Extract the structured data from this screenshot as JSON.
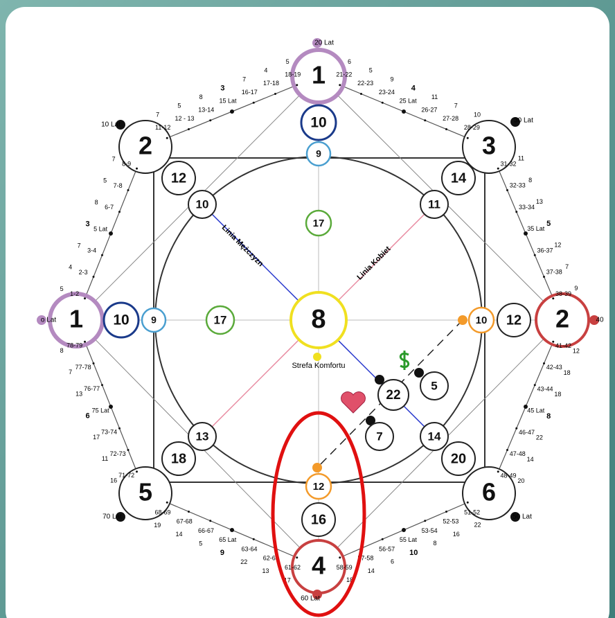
{
  "nodes": [
    {
      "label": "1"
    },
    {
      "label": "10"
    },
    {
      "label": "9"
    },
    {
      "label": "17"
    },
    {
      "label": "8"
    },
    {
      "label": "2"
    },
    {
      "label": "12"
    },
    {
      "label": "10"
    },
    {
      "label": "3"
    },
    {
      "label": "14"
    },
    {
      "label": "11"
    },
    {
      "label": "1"
    },
    {
      "label": "10"
    },
    {
      "label": "9"
    },
    {
      "label": "17"
    },
    {
      "label": "2"
    },
    {
      "label": "12"
    },
    {
      "label": "10"
    },
    {
      "label": "5"
    },
    {
      "label": "18"
    },
    {
      "label": "13"
    },
    {
      "label": "6"
    },
    {
      "label": "20"
    },
    {
      "label": "14"
    },
    {
      "label": "4"
    },
    {
      "label": "16"
    },
    {
      "label": "12"
    },
    {
      "label": "22"
    },
    {
      "label": "5"
    },
    {
      "label": "7"
    }
  ],
  "line_labels": {
    "men": "Linia Mężczyzn",
    "women": "Linia Kobiet",
    "comfort": "Strefa Komfortu"
  },
  "ages": [
    "o Lat",
    "10 Lat",
    "20 Lat",
    "30 Lat",
    "40",
    "50 Lat",
    "60 Lat",
    "70 Lat"
  ],
  "edges": [
    {
      "ranges": [
        "1-2",
        "2-3",
        "3-4",
        "5 Lat",
        "6-7",
        "7-8",
        "8-9"
      ],
      "numbers": [
        "5",
        "4",
        "7",
        "3",
        "8",
        "5",
        "7"
      ]
    },
    {
      "ranges": [
        "11-12",
        "12 - 13",
        "13-14",
        "15 Lat",
        "16-17",
        "17-18",
        "18-19"
      ],
      "numbers": [
        "7",
        "5",
        "8",
        "3",
        "7",
        "4",
        "5"
      ]
    },
    {
      "ranges": [
        "21-22",
        "22-23",
        "23-24",
        "25 Lat",
        "26-27",
        "27-28",
        "28-29"
      ],
      "numbers": [
        "6",
        "5",
        "9",
        "4",
        "11",
        "7",
        "10"
      ]
    },
    {
      "ranges": [
        "31-32",
        "32-33",
        "33-34",
        "35 Lat",
        "36-37",
        "37-38",
        "38-39"
      ],
      "numbers": [
        "11",
        "8",
        "13",
        "5",
        "12",
        "7",
        "9"
      ]
    },
    {
      "ranges": [
        "41-42",
        "42-43",
        "43-44",
        "45 Lat",
        "46-47",
        "47-48",
        "48-49"
      ],
      "numbers": [
        "12",
        "18",
        "18",
        "8",
        "22",
        "14",
        "20"
      ]
    },
    {
      "ranges": [
        "51-52",
        "52-53",
        "53-54",
        "55 Lat",
        "56-57",
        "57-58",
        "58-59"
      ],
      "numbers": [
        "22",
        "16",
        "8",
        "10",
        "6",
        "14",
        "18"
      ]
    },
    {
      "ranges": [
        "61-62",
        "62-63",
        "63-64",
        "65 Lat",
        "66-67",
        "67-68",
        "68-69"
      ],
      "numbers": [
        "17",
        "13",
        "22",
        "9",
        "5",
        "14",
        "19"
      ]
    },
    {
      "ranges": [
        "71-72",
        "72-73",
        "73-74",
        "75 Lat",
        "76-77",
        "77-78",
        "78-79"
      ],
      "numbers": [
        "16",
        "11",
        "17",
        "6",
        "13",
        "7",
        "8"
      ]
    }
  ]
}
